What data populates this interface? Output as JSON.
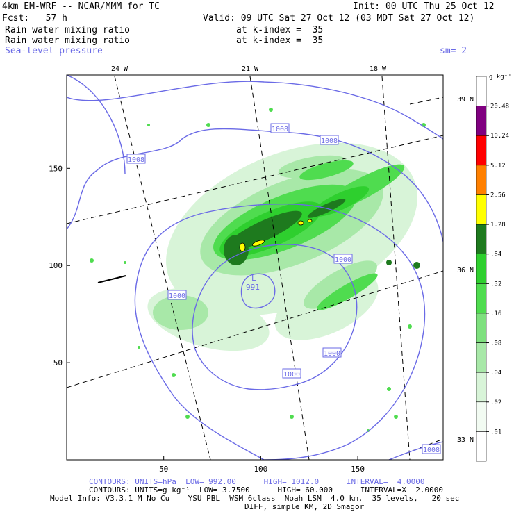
{
  "header": {
    "model": "4km EM-WRF -- NCAR/MMM for TC",
    "init": "Init: 00 UTC Thu 25 Oct 12",
    "fcst": "Fcst:   57 h",
    "valid": "Valid: 09 UTC Sat 27 Oct 12 (03 MDT Sat 27 Oct 12)",
    "field1": "Rain water mixing ratio",
    "field1_level": "at k-index =  35",
    "field2": "Rain water mixing ratio",
    "field2_level": "at k-index =  35",
    "field3": "Sea-level pressure",
    "smoothing": "sm= 2"
  },
  "footer": {
    "line1": "CONTOURS: UNITS=hPa  LOW= 992.00      HIGH= 1012.0      INTERVAL=  4.0000",
    "line2": "CONTOURS: UNITS=g kg⁻¹  LOW= 3.7500      HIGH= 60.000      INTERVAL=X  2.0000",
    "line3": "Model Info: V3.3.1 M No Cu    YSU PBL  WSM 6class  Noah LSM  4.0 km,  35 levels,   20 sec",
    "line4": "DIFF, simple KM, 2D Smagor"
  },
  "colors": {
    "contour": "#6a6ae6",
    "green_light": "#c6f0c6",
    "green_mid": "#7ee07e",
    "green_bright": "#2ecf2e",
    "green_dark": "#1e7a1e",
    "yellow": "#ffff00"
  },
  "chart_data": {
    "type": "heatmap",
    "description_fields": [
      "Rain water mixing ratio",
      "Sea-level pressure"
    ],
    "x_ticks": [
      50,
      100,
      150
    ],
    "y_ticks": [
      50,
      100,
      150
    ],
    "top_lon_labels": [
      "24 W",
      "21 W",
      "18 W"
    ],
    "right_lat_labels": [
      "39 N",
      "36 N",
      "33 N"
    ],
    "colorbar": {
      "units": "g kg⁻¹",
      "levels": [
        "20.48",
        "10.24",
        "5.12",
        "2.56",
        "1.28",
        ".64",
        ".32",
        ".16",
        ".08",
        ".04",
        ".02",
        ".01"
      ],
      "colors": [
        "#800080",
        "#ff0000",
        "#ff8000",
        "#ffff00",
        "#fff600",
        "#1e7a1e",
        "#2ecf2e",
        "#4fdc4f",
        "#7ee07e",
        "#a8e8a8",
        "#d8f4d8",
        "#f2fbf2",
        "#ffffff"
      ]
    },
    "pressure_contour_labels": [
      "1008",
      "1008",
      "1008",
      "1000",
      "1000",
      "1000",
      "1000",
      "1008"
    ],
    "low_center": {
      "label": "L",
      "value": "991"
    }
  }
}
